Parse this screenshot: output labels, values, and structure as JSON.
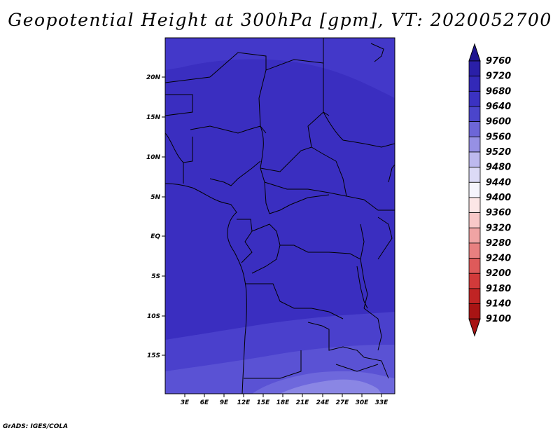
{
  "title": "Geopotential Height at 300hPa [gpm], VT: 2020052700",
  "footer": "GrADS: IGES/COLA",
  "map": {
    "lat_ticks": [
      "20N",
      "15N",
      "10N",
      "5N",
      "EQ",
      "5S",
      "10S",
      "15S"
    ],
    "lon_ticks": [
      "3E",
      "6E",
      "9E",
      "12E",
      "15E",
      "18E",
      "21E",
      "24E",
      "27E",
      "30E",
      "33E"
    ],
    "colors": {
      "dominant_fill": "#3a2ec0",
      "upper_band": "#4338c9",
      "lower_band_1": "#4a40cc",
      "lower_band_2": "#5a52d4",
      "lower_band_3": "#6e68dc",
      "lower_band_4": "#8a86e4",
      "coastline": "#000000"
    }
  },
  "colorbar": {
    "levels": [
      "9760",
      "9720",
      "9680",
      "9640",
      "9600",
      "9560",
      "9520",
      "9480",
      "9440",
      "9400",
      "9360",
      "9320",
      "9280",
      "9240",
      "9200",
      "9180",
      "9140",
      "9100"
    ],
    "colors": [
      "#1f1590",
      "#2a1fa8",
      "#3329b8",
      "#3b32c2",
      "#4b45cb",
      "#6d66d8",
      "#9690e4",
      "#bdb9ee",
      "#dcdaf6",
      "#f5f4fc",
      "#fce6e6",
      "#f8c8c8",
      "#f0a4a4",
      "#e88080",
      "#de5a5a",
      "#d23a3a",
      "#c02424",
      "#a81414"
    ]
  }
}
